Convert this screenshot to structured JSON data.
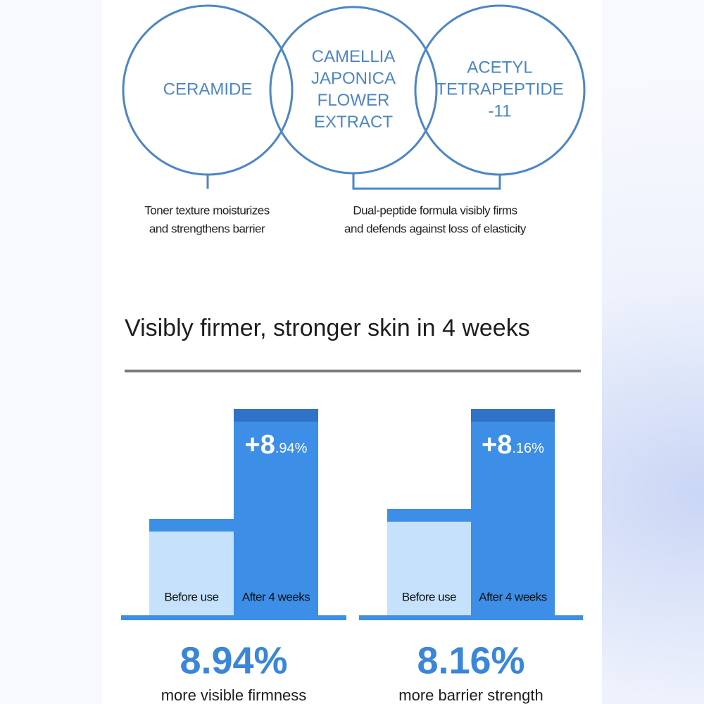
{
  "ingredients": [
    {
      "label": [
        "CERAMIDE"
      ]
    },
    {
      "label": [
        "CAMELLIA",
        "JAPONICA",
        "FLOWER",
        "EXTRACT"
      ]
    },
    {
      "label": [
        "ACETYL",
        "TETRAPEPTIDE",
        "-11"
      ]
    }
  ],
  "captions": [
    [
      "Toner texture moisturizes",
      "and strengthens barrier"
    ],
    [
      "Dual-peptide formula visibly firms",
      "and defends against loss of elasticity"
    ]
  ],
  "heading": "Visibly firmer, stronger skin in 4 weeks",
  "results": [
    {
      "increase": {
        "big": "+8",
        "small": ".94%"
      },
      "before_label": "Before use",
      "after_label": "After 4 weeks",
      "figure": "8.94%",
      "description": "more visible firmness"
    },
    {
      "increase": {
        "big": "+8",
        "small": ".16%"
      },
      "before_label": "Before use",
      "after_label": "After 4 weeks",
      "figure": "8.16%",
      "description": "more barrier strength"
    }
  ]
}
